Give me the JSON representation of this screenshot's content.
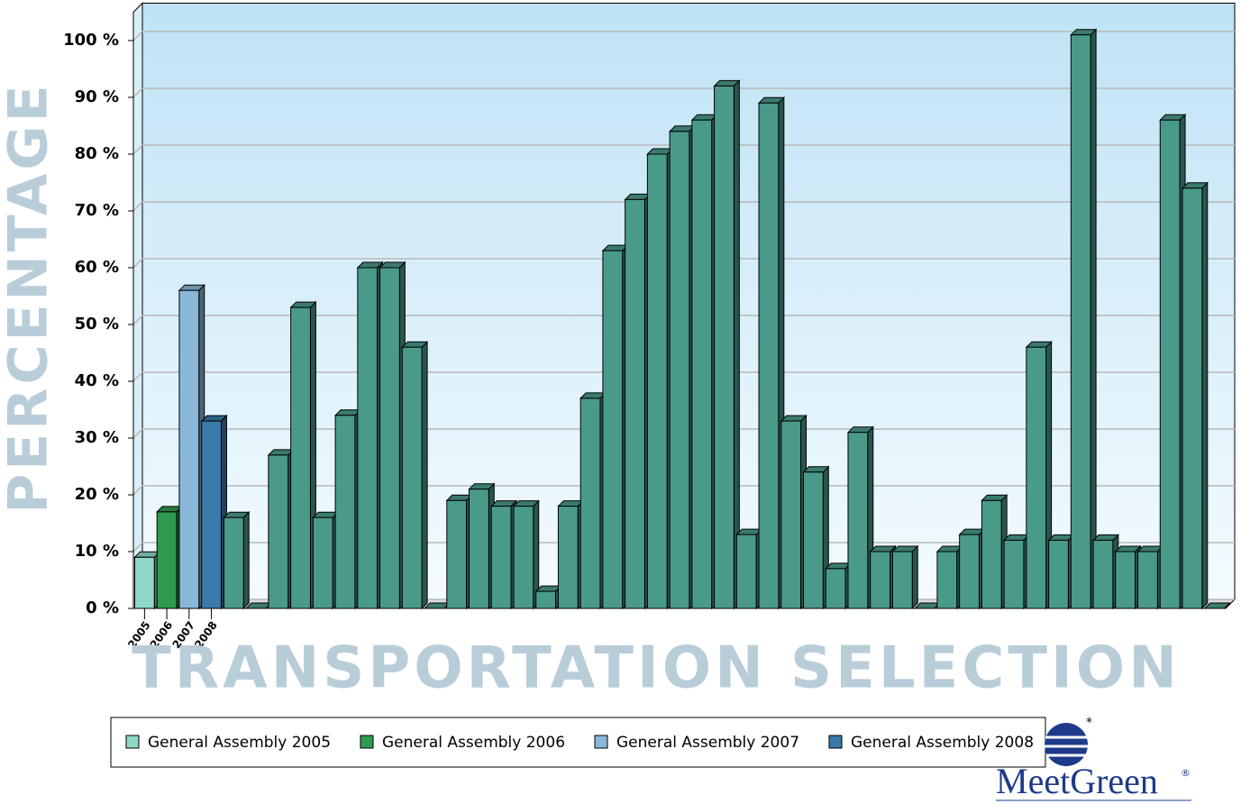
{
  "chart_data": {
    "type": "bar",
    "y_title": "PERCENTAGE",
    "x_title": "TRANSPORTATION SELECTION",
    "categories": [
      "2005",
      "2006",
      "2007",
      "2008",
      null,
      null,
      null,
      null,
      null,
      null,
      null,
      null,
      null,
      null,
      null,
      null,
      null,
      null,
      null,
      null,
      null,
      null,
      null,
      null,
      null,
      null,
      null,
      null,
      null,
      null,
      null,
      null,
      null,
      null,
      null,
      null,
      null,
      null,
      null,
      null,
      null,
      null,
      null,
      null,
      null,
      null,
      null,
      null,
      null
    ],
    "values": [
      9,
      17,
      56,
      33,
      16,
      0,
      27,
      53,
      16,
      34,
      60,
      60,
      46,
      0,
      19,
      21,
      18,
      18,
      3,
      18,
      37,
      63,
      72,
      80,
      84,
      86,
      92,
      13,
      89,
      33,
      24,
      7,
      31,
      10,
      10,
      0,
      10,
      13,
      19,
      12,
      46,
      12,
      101,
      12,
      10,
      10,
      86,
      74,
      0
    ],
    "colors": [
      "#8fd8c8",
      "#2e9a50",
      "#8ab8d8",
      "#3a7aa8"
    ],
    "default_color": "#4a9a8a",
    "legend": [
      {
        "name": "General Assembly 2005",
        "color": "#8fd8c8"
      },
      {
        "name": "General Assembly 2006",
        "color": "#2e9a50"
      },
      {
        "name": "General Assembly 2007",
        "color": "#8ab8d8"
      },
      {
        "name": "General Assembly 2008",
        "color": "#3a7aa8"
      }
    ],
    "ylim": [
      0,
      105
    ],
    "yticks": [
      {
        "value": 0,
        "label": "0 %"
      },
      {
        "value": 10,
        "label": "10 %"
      },
      {
        "value": 20,
        "label": "20 %"
      },
      {
        "value": 30,
        "label": "30 %"
      },
      {
        "value": 40,
        "label": "40 %"
      },
      {
        "value": 50,
        "label": "50 %"
      },
      {
        "value": 60,
        "label": "60 %"
      },
      {
        "value": 70,
        "label": "70 %"
      },
      {
        "value": 80,
        "label": "80 %"
      },
      {
        "value": 90,
        "label": "90 %"
      },
      {
        "value": 100,
        "label": "100 %"
      }
    ],
    "grid": true,
    "logo": "MeetGreen",
    "logo_mark": "®"
  }
}
